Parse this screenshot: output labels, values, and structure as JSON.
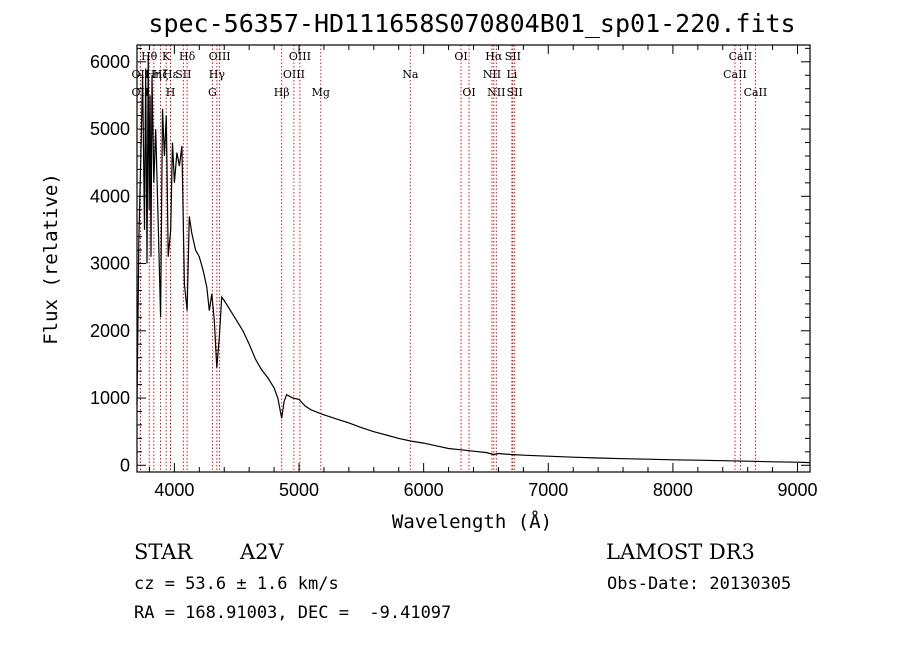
{
  "chart_data": {
    "type": "line",
    "title": "spec-56357-HD111658S070804B01_sp01-220.fits",
    "xlabel": "Wavelength (Å)",
    "ylabel": "Flux (relative)",
    "xlim": [
      3700,
      9100
    ],
    "ylim": [
      -100,
      6250
    ],
    "xticks": [
      4000,
      5000,
      6000,
      7000,
      8000,
      9000
    ],
    "yticks": [
      0,
      1000,
      2000,
      3000,
      4000,
      5000,
      6000
    ],
    "series": [
      {
        "name": "flux",
        "x": [
          3700,
          3715,
          3730,
          3745,
          3760,
          3770,
          3780,
          3790,
          3798,
          3805,
          3812,
          3820,
          3835,
          3850,
          3870,
          3889,
          3905,
          3920,
          3935,
          3950,
          3970,
          3985,
          4000,
          4020,
          4040,
          4060,
          4080,
          4102,
          4120,
          4140,
          4170,
          4200,
          4230,
          4260,
          4280,
          4300,
          4320,
          4340,
          4360,
          4380,
          4400,
          4450,
          4500,
          4550,
          4600,
          4650,
          4700,
          4750,
          4800,
          4830,
          4861,
          4880,
          4900,
          4950,
          5000,
          5050,
          5100,
          5200,
          5300,
          5400,
          5500,
          5600,
          5700,
          5800,
          5900,
          6000,
          6100,
          6200,
          6300,
          6400,
          6500,
          6563,
          6600,
          6700,
          6800,
          7000,
          7200,
          7400,
          7600,
          7800,
          8000,
          8200,
          8400,
          8600,
          8800,
          9000,
          9100
        ],
        "y": [
          900,
          3400,
          4500,
          5800,
          3500,
          5900,
          3000,
          6100,
          3800,
          5500,
          3100,
          5800,
          4200,
          5000,
          3600,
          2200,
          5300,
          4600,
          5200,
          3100,
          3500,
          4800,
          4200,
          4650,
          4450,
          4750,
          2700,
          2300,
          3700,
          3450,
          3200,
          3100,
          2900,
          2650,
          2300,
          2550,
          2150,
          1450,
          1900,
          2500,
          2450,
          2300,
          2150,
          2000,
          1800,
          1580,
          1420,
          1300,
          1150,
          1000,
          700,
          950,
          1050,
          1000,
          980,
          880,
          820,
          750,
          690,
          630,
          560,
          500,
          450,
          400,
          360,
          330,
          290,
          250,
          230,
          210,
          190,
          160,
          175,
          160,
          150,
          135,
          120,
          108,
          98,
          90,
          82,
          75,
          68,
          60,
          52,
          45,
          40
        ]
      }
    ],
    "annotations": [
      {
        "label": "OII",
        "x": 3727,
        "row": 2
      },
      {
        "label": "OII",
        "x": 3727,
        "row": 3
      },
      {
        "label": "Hθ",
        "x": 3798,
        "row": 1
      },
      {
        "label": "Hη",
        "x": 3835,
        "row": 2
      },
      {
        "label": "Hζ",
        "x": 3889,
        "row": 2
      },
      {
        "label": "K",
        "x": 3934,
        "row": 1
      },
      {
        "label": "H",
        "x": 3969,
        "row": 3
      },
      {
        "label": "Hε",
        "x": 3970,
        "row": 2
      },
      {
        "label": "SII",
        "x": 4072,
        "row": 2
      },
      {
        "label": "Hδ",
        "x": 4102,
        "row": 1
      },
      {
        "label": "OIII",
        "x": 4363,
        "row": 1
      },
      {
        "label": "Hγ",
        "x": 4341,
        "row": 2
      },
      {
        "label": "G",
        "x": 4305,
        "row": 3
      },
      {
        "label": "Hβ",
        "x": 4861,
        "row": 3
      },
      {
        "label": "OIII",
        "x": 4959,
        "row": 2
      },
      {
        "label": "OIII",
        "x": 5007,
        "row": 1
      },
      {
        "label": "Mg",
        "x": 5175,
        "row": 3
      },
      {
        "label": "Na",
        "x": 5893,
        "row": 2
      },
      {
        "label": "OI",
        "x": 6300,
        "row": 1
      },
      {
        "label": "OI",
        "x": 6364,
        "row": 3
      },
      {
        "label": "NII",
        "x": 6548,
        "row": 2
      },
      {
        "label": "Hα",
        "x": 6563,
        "row": 1
      },
      {
        "label": "NII",
        "x": 6583,
        "row": 3
      },
      {
        "label": "Li",
        "x": 6708,
        "row": 2
      },
      {
        "label": "SII",
        "x": 6716,
        "row": 1
      },
      {
        "label": "SII",
        "x": 6731,
        "row": 3
      },
      {
        "label": "CaII",
        "x": 8498,
        "row": 2
      },
      {
        "label": "CaII",
        "x": 8542,
        "row": 1
      },
      {
        "label": "CaII",
        "x": 8662,
        "row": 3
      }
    ],
    "line_color": "#000000",
    "marker_color": "#cc0000",
    "grid": false
  },
  "info": {
    "class": "STAR",
    "subclass": "A2V",
    "survey": "LAMOST DR3",
    "cz": "cz = 53.6 ± 1.6 km/s",
    "obs_date": "Obs-Date: 20130305",
    "coords": "RA = 168.91003, DEC =  -9.41097"
  }
}
